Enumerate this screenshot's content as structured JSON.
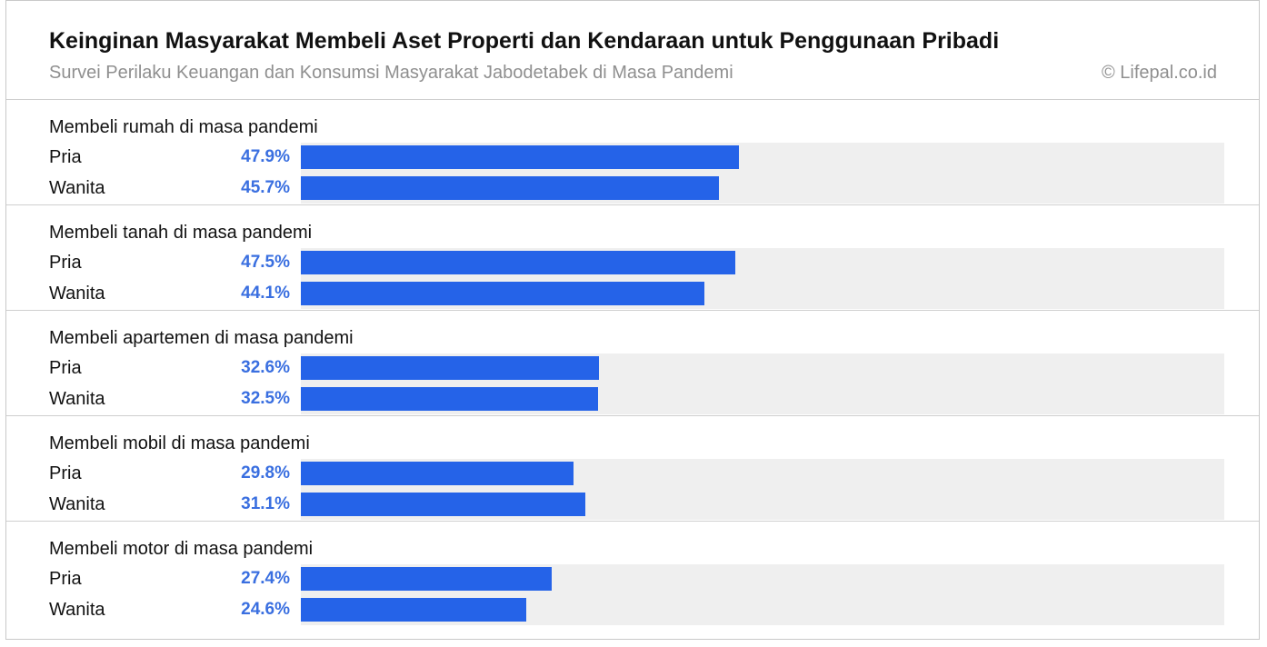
{
  "chart_data": {
    "type": "bar",
    "title": "Keinginan Masyarakat Membeli Aset Properti dan Kendaraan untuk Penggunaan Pribadi",
    "subtitle": "Survei Perilaku Keuangan dan Konsumsi Masyarakat Jabodetabek di Masa Pandemi",
    "source": "© Lifepal.co.id",
    "xlim": [
      0,
      100
    ],
    "groups": [
      {
        "label": "Membeli rumah di masa pandemi",
        "rows": [
          {
            "label": "Pria",
            "value": 47.9,
            "value_label": "47.9%"
          },
          {
            "label": "Wanita",
            "value": 45.7,
            "value_label": "45.7%"
          }
        ]
      },
      {
        "label": "Membeli tanah di masa pandemi",
        "rows": [
          {
            "label": "Pria",
            "value": 47.5,
            "value_label": "47.5%"
          },
          {
            "label": "Wanita",
            "value": 44.1,
            "value_label": "44.1%"
          }
        ]
      },
      {
        "label": "Membeli apartemen di masa pandemi",
        "rows": [
          {
            "label": "Pria",
            "value": 32.6,
            "value_label": "32.6%"
          },
          {
            "label": "Wanita",
            "value": 32.5,
            "value_label": "32.5%"
          }
        ]
      },
      {
        "label": "Membeli mobil di masa pandemi",
        "rows": [
          {
            "label": "Pria",
            "value": 29.8,
            "value_label": "29.8%"
          },
          {
            "label": "Wanita",
            "value": 31.1,
            "value_label": "31.1%"
          }
        ]
      },
      {
        "label": "Membeli motor di masa pandemi",
        "rows": [
          {
            "label": "Pria",
            "value": 27.4,
            "value_label": "27.4%"
          },
          {
            "label": "Wanita",
            "value": 24.6,
            "value_label": "24.6%"
          }
        ]
      }
    ],
    "colors": {
      "bar": "#2563e8",
      "value_text": "#3a6fe0",
      "track": "#efefef"
    }
  }
}
